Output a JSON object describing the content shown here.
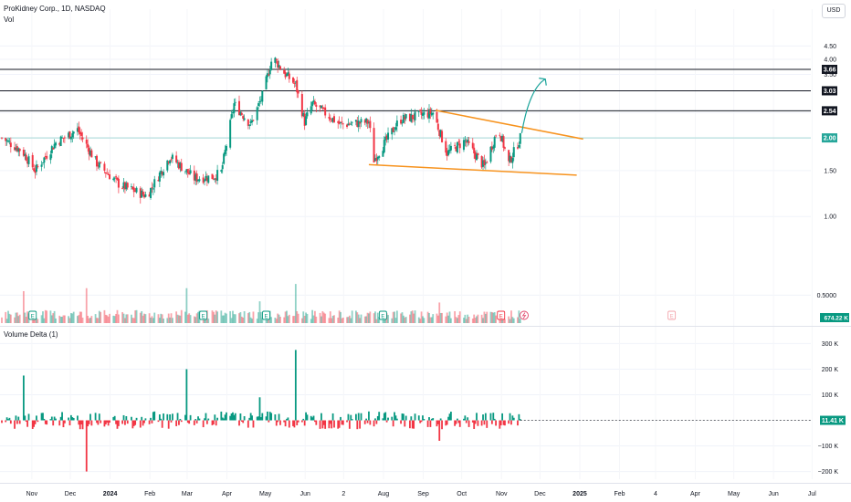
{
  "header": {
    "symbol_line": "ProKidney Corp., 1D, NASDAQ",
    "volume_label": "Vol",
    "delta_label": "Volume Delta (1)",
    "currency_button": "USD"
  },
  "colors": {
    "up": "#089981",
    "down": "#f23645",
    "level": "#131722",
    "wedge": "#f7931e",
    "arrow": "#1aa39a",
    "price_line": "#26a69a",
    "grid": "#f0f3fa"
  },
  "chart_data": [
    {
      "type": "candlestick",
      "title": "ProKidney Corp., 1D, NASDAQ",
      "y_scale": "log",
      "ylim": [
        0.42,
        5.3
      ],
      "y_ticks": [
        4.5,
        4.0,
        3.5,
        2.5,
        1.5,
        1.0,
        0.5
      ],
      "x_ticks": [
        "Nov",
        "Dec",
        "2024",
        "Feb",
        "Mar",
        "Apr",
        "May",
        "Jun",
        "2",
        "Aug",
        "Sep",
        "Oct",
        "Nov",
        "Dec",
        "2025",
        "Feb",
        "4",
        "Apr",
        "May",
        "Jun",
        "Jul"
      ],
      "horizontal_levels": [
        3.66,
        3.03,
        2.54
      ],
      "current_price": 2.0,
      "current_volume_label": "674.22 K",
      "anchor_closes": [
        {
          "x": "2023-10-20",
          "close": 2.0
        },
        {
          "x": "2023-11-05",
          "close": 1.78
        },
        {
          "x": "2023-11-15",
          "close": 1.5
        },
        {
          "x": "2023-12-01",
          "close": 1.92
        },
        {
          "x": "2023-12-18",
          "close": 2.15
        },
        {
          "x": "2024-01-02",
          "close": 1.6
        },
        {
          "x": "2024-01-20",
          "close": 1.32
        },
        {
          "x": "2024-02-10",
          "close": 1.2
        },
        {
          "x": "2024-02-28",
          "close": 1.7
        },
        {
          "x": "2024-03-18",
          "close": 1.4
        },
        {
          "x": "2024-04-02",
          "close": 1.42
        },
        {
          "x": "2024-04-08",
          "close": 1.48
        },
        {
          "x": "2024-04-18",
          "close": 2.7
        },
        {
          "x": "2024-05-01",
          "close": 2.25
        },
        {
          "x": "2024-05-10",
          "close": 2.9
        },
        {
          "x": "2024-05-18",
          "close": 4.1
        },
        {
          "x": "2024-05-28",
          "close": 3.5
        },
        {
          "x": "2024-06-05",
          "close": 3.2
        },
        {
          "x": "2024-06-12",
          "close": 2.3
        },
        {
          "x": "2024-06-18",
          "close": 2.7
        },
        {
          "x": "2024-07-10",
          "close": 2.25
        },
        {
          "x": "2024-08-01",
          "close": 2.3
        },
        {
          "x": "2024-08-05",
          "close": 1.65
        },
        {
          "x": "2024-08-25",
          "close": 2.35
        },
        {
          "x": "2024-09-20",
          "close": 2.5
        },
        {
          "x": "2024-10-01",
          "close": 1.75
        },
        {
          "x": "2024-10-15",
          "close": 1.95
        },
        {
          "x": "2024-10-30",
          "close": 1.55
        },
        {
          "x": "2024-11-10",
          "close": 2.2
        },
        {
          "x": "2024-11-18",
          "close": 1.6
        },
        {
          "x": "2024-11-27",
          "close": 2.0
        }
      ],
      "wedge_lines": [
        {
          "from": {
            "x": "2024-09-22",
            "y": 2.55
          },
          "to": {
            "x": "2025-01-15",
            "y": 1.98
          }
        },
        {
          "from": {
            "x": "2024-08-01",
            "y": 1.58
          },
          "to": {
            "x": "2025-01-10",
            "y": 1.44
          }
        }
      ],
      "projection_arrow": {
        "from": {
          "x": "2024-12-01",
          "y": 2.45
        },
        "to": {
          "x": "2024-12-08",
          "y": 3.36
        }
      },
      "earnings_markers": [
        "2023-11-13",
        "2024-03-25",
        "2024-05-13",
        "2024-08-12",
        "2024-11-12",
        "2025-03-25"
      ],
      "dividend_marker": "2024-11-30"
    },
    {
      "type": "bar",
      "title": "Volume Delta (1)",
      "ylim": [
        -230000,
        330000
      ],
      "y_ticks": [
        "300 K",
        "200 K",
        "100 K",
        "0",
        "−100 K",
        "−200 K"
      ],
      "last_value_label": "11.41 K",
      "notable_bars": [
        {
          "x": "2023-11-05",
          "value": 175000
        },
        {
          "x": "2023-12-25",
          "value": -200000
        },
        {
          "x": "2024-03-12",
          "value": 200000
        },
        {
          "x": "2024-05-08",
          "value": 90000
        },
        {
          "x": "2024-06-05",
          "value": 275000
        },
        {
          "x": "2024-09-25",
          "value": -80000
        }
      ]
    }
  ]
}
